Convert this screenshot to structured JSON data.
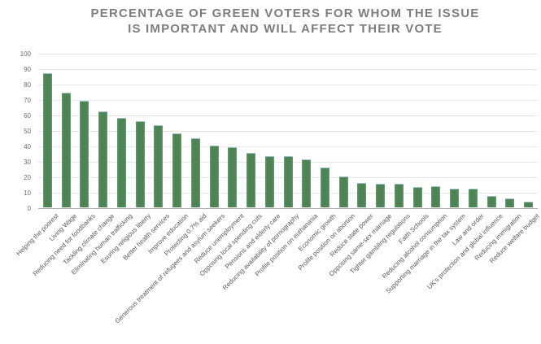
{
  "title": {
    "line1": "PERCENTAGE OF GREEN VOTERS FOR WHOM THE ISSUE",
    "line2": "IS IMPORTANT AND WILL AFFECT THEIR VOTE"
  },
  "chart_data": {
    "type": "bar",
    "title": "PERCENTAGE OF GREEN VOTERS FOR WHOM THE ISSUE IS IMPORTANT AND WILL AFFECT THEIR VOTE",
    "categories": [
      "Helping the poorest",
      "Living Wage",
      "Reducing need for foodbanks",
      "Tackling climate change",
      "Eliminating human trafficking",
      "Esuring religious liberty",
      "Better health services",
      "Improve education",
      "Protecting 0.7% aid",
      "Generous treatment of refugees and asylum seekers",
      "Reduce unemployment",
      "Opposing local spending cuts",
      "Pensions and elderly care",
      "Reducing availability of pornography",
      "Profile position on euthanasia",
      "Economic growth",
      "Prolife position on abortion",
      "Reduce state power",
      "Opposing same-sex marriage",
      "Tighter gambling regulations",
      "Faith Schools",
      "Reducing alcohol consumption",
      "Supporting marriage in the tax system",
      "Law and order",
      "UK's protection and global influence",
      "Reducing immigration",
      "Reduce welfare budget"
    ],
    "values": [
      87,
      74,
      69,
      62,
      58,
      56,
      53,
      48,
      44.5,
      40,
      39,
      35.5,
      33,
      33,
      31,
      26,
      20,
      16,
      15.5,
      15,
      13,
      13.5,
      12,
      12,
      7.5,
      6,
      3.5
    ],
    "xlabel": "",
    "ylabel": "",
    "ylim": [
      0,
      100
    ],
    "ytick_step": 10,
    "yticks": [
      "0",
      "10",
      "20",
      "30",
      "40",
      "50",
      "60",
      "70",
      "80",
      "90",
      "100"
    ],
    "grid": "horizontal",
    "legend_position": "none",
    "colors": {
      "bar_fill": "#4e8355",
      "bar_edge_highlight": "#9cc0c4",
      "gridline": "#e7e7e7",
      "axis_line": "#a9a9a9",
      "y_tick_label": "#6e6e6e",
      "category_label": "#595959",
      "title": "#7d7d7d",
      "background": "#ffffff"
    }
  }
}
